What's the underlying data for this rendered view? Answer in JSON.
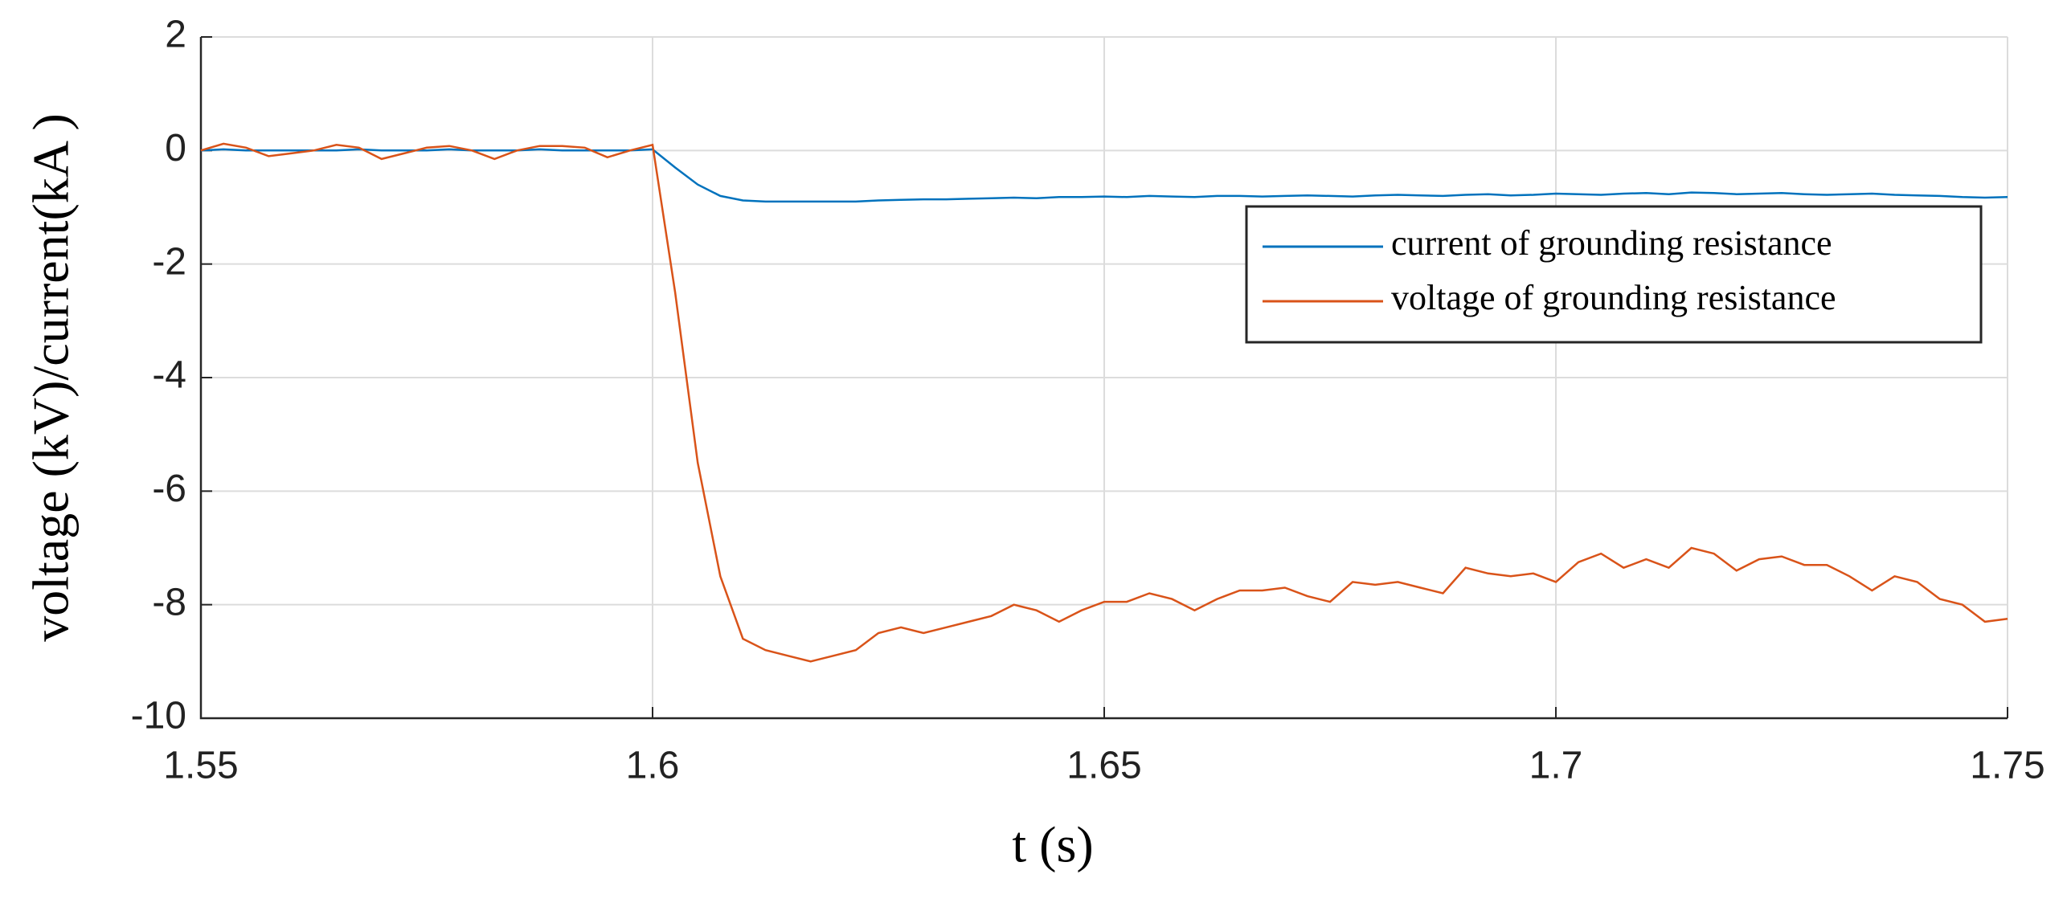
{
  "chart_data": {
    "type": "line",
    "x_label": "t (s)",
    "y_label": "voltage (kV)/current(kA )",
    "x": [
      1.55,
      1.5525,
      1.555,
      1.5575,
      1.56,
      1.5625,
      1.565,
      1.5675,
      1.57,
      1.5725,
      1.575,
      1.5775,
      1.58,
      1.5825,
      1.585,
      1.5875,
      1.59,
      1.5925,
      1.595,
      1.5975,
      1.6,
      1.6025,
      1.605,
      1.6075,
      1.61,
      1.6125,
      1.615,
      1.6175,
      1.62,
      1.6225,
      1.625,
      1.6275,
      1.63,
      1.6325,
      1.635,
      1.6375,
      1.64,
      1.6425,
      1.645,
      1.6475,
      1.65,
      1.6525,
      1.655,
      1.6575,
      1.66,
      1.6625,
      1.665,
      1.6675,
      1.67,
      1.6725,
      1.675,
      1.6775,
      1.68,
      1.6825,
      1.685,
      1.6875,
      1.69,
      1.6925,
      1.695,
      1.6975,
      1.7,
      1.7025,
      1.705,
      1.7075,
      1.71,
      1.7125,
      1.715,
      1.7175,
      1.72,
      1.7225,
      1.725,
      1.7275,
      1.73,
      1.7325,
      1.735,
      1.7375,
      1.74,
      1.7425,
      1.745,
      1.7475,
      1.75
    ],
    "series": [
      {
        "name": "current of grounding resistance",
        "color": "#0072bd",
        "values": [
          0,
          0.02,
          0,
          0,
          0,
          0,
          0,
          0.02,
          0,
          0,
          0,
          0.02,
          0,
          0,
          0,
          0.02,
          0,
          0,
          0,
          0,
          0.02,
          -0.3,
          -0.6,
          -0.8,
          -0.88,
          -0.9,
          -0.9,
          -0.9,
          -0.9,
          -0.9,
          -0.88,
          -0.87,
          -0.86,
          -0.86,
          -0.85,
          -0.84,
          -0.83,
          -0.84,
          -0.82,
          -0.82,
          -0.81,
          -0.82,
          -0.8,
          -0.81,
          -0.82,
          -0.8,
          -0.8,
          -0.81,
          -0.8,
          -0.79,
          -0.8,
          -0.81,
          -0.79,
          -0.78,
          -0.79,
          -0.8,
          -0.78,
          -0.77,
          -0.79,
          -0.78,
          -0.76,
          -0.77,
          -0.78,
          -0.76,
          -0.75,
          -0.77,
          -0.74,
          -0.75,
          -0.77,
          -0.76,
          -0.75,
          -0.77,
          -0.78,
          -0.77,
          -0.76,
          -0.78,
          -0.79,
          -0.8,
          -0.82,
          -0.83,
          -0.82
        ]
      },
      {
        "name": "voltage of grounding resistance",
        "color": "#d95319",
        "values": [
          0,
          0.12,
          0.05,
          -0.1,
          -0.05,
          0,
          0.1,
          0.05,
          -0.15,
          -0.05,
          0.05,
          0.08,
          0,
          -0.15,
          0,
          0.08,
          0.08,
          0.05,
          -0.12,
          0,
          0.1,
          -2.5,
          -5.5,
          -7.5,
          -8.6,
          -8.8,
          -8.9,
          -9.0,
          -8.9,
          -8.8,
          -8.5,
          -8.4,
          -8.5,
          -8.4,
          -8.3,
          -8.2,
          -8.0,
          -8.1,
          -8.3,
          -8.1,
          -7.95,
          -7.95,
          -7.8,
          -7.9,
          -8.1,
          -7.9,
          -7.75,
          -7.75,
          -7.7,
          -7.85,
          -7.95,
          -7.6,
          -7.65,
          -7.6,
          -7.7,
          -7.8,
          -7.35,
          -7.45,
          -7.5,
          -7.45,
          -7.6,
          -7.25,
          -7.1,
          -7.35,
          -7.2,
          -7.35,
          -7.0,
          -7.1,
          -7.4,
          -7.2,
          -7.15,
          -7.3,
          -7.3,
          -7.5,
          -7.75,
          -7.5,
          -7.6,
          -7.9,
          -8.0,
          -8.3,
          -8.25
        ]
      }
    ],
    "xlim": [
      1.55,
      1.75
    ],
    "xticks": [
      1.55,
      1.6,
      1.65,
      1.7,
      1.75
    ],
    "ylim": [
      -10,
      2
    ],
    "yticks": [
      -10,
      -8,
      -6,
      -4,
      -2,
      0,
      2
    ],
    "grid": true,
    "legend": "upper right"
  }
}
